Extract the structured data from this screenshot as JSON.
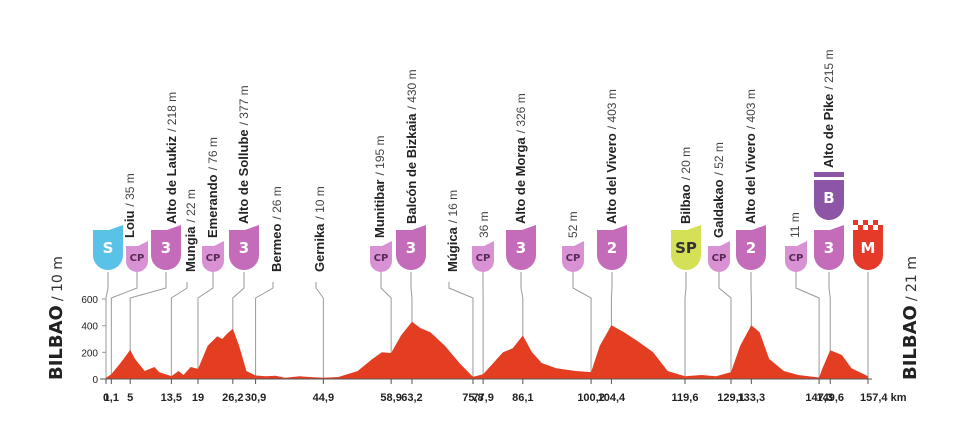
{
  "chart_data": {
    "type": "area",
    "color": "#e33d22",
    "x": [
      0,
      1.1,
      3,
      5,
      6,
      8,
      10,
      11,
      13.5,
      15,
      16,
      17.5,
      19,
      21,
      23,
      24,
      25,
      26.2,
      27.5,
      29,
      30.9,
      33,
      35,
      37,
      40,
      42,
      44.9,
      48,
      52,
      55,
      57,
      58.9,
      61,
      63.2,
      65,
      67,
      70,
      73,
      75.8,
      77.9,
      80,
      82,
      84,
      86.1,
      88,
      90,
      93,
      97,
      100.2,
      102,
      104.4,
      107,
      110,
      113,
      116,
      119.6,
      123,
      126,
      129.1,
      131,
      133.3,
      135,
      137,
      140,
      143,
      147.3,
      148,
      149.6,
      152,
      154,
      157.4
    ],
    "values": [
      10,
      35,
      120,
      218,
      150,
      60,
      90,
      50,
      22,
      60,
      30,
      90,
      76,
      250,
      320,
      300,
      340,
      377,
      250,
      60,
      26,
      20,
      25,
      10,
      20,
      15,
      10,
      15,
      60,
      150,
      200,
      195,
      330,
      430,
      380,
      350,
      250,
      120,
      16,
      36,
      120,
      200,
      230,
      326,
      200,
      120,
      80,
      60,
      52,
      250,
      403,
      350,
      280,
      200,
      60,
      20,
      30,
      20,
      52,
      250,
      403,
      350,
      150,
      60,
      30,
      11,
      80,
      215,
      180,
      80,
      21
    ],
    "xlim": [
      0,
      157.4
    ],
    "ylim": [
      0,
      600
    ],
    "yticks": [
      0,
      200,
      400,
      600
    ],
    "xticks": [
      0,
      {
        "value": 1.1,
        "label": "1,1"
      },
      5,
      {
        "value": 13.5,
        "label": "13,5"
      },
      19,
      {
        "value": 26.2,
        "label": "26,2"
      },
      {
        "value": 30.9,
        "label": "30,9"
      },
      {
        "value": 44.9,
        "label": "44,9"
      },
      {
        "value": 58.9,
        "label": "58,9"
      },
      {
        "value": 63.2,
        "label": "63,2"
      },
      {
        "value": 75.8,
        "label": "75,8"
      },
      {
        "value": 77.9,
        "label": "77,9"
      },
      {
        "value": 86.1,
        "label": "86,1"
      },
      {
        "value": 100.2,
        "label": "100,2"
      },
      {
        "value": 104.4,
        "label": "104,4"
      },
      {
        "value": 119.6,
        "label": "119,6"
      },
      {
        "value": 129.1,
        "label": "129,1"
      },
      {
        "value": 133.3,
        "label": "133,3"
      },
      {
        "value": 147.3,
        "label": "147,3"
      },
      {
        "value": 149.6,
        "label": "149,6"
      },
      {
        "value": 157.4,
        "label": "157,4 km"
      }
    ],
    "start": {
      "name": "BILBAO",
      "altitude": "/ 10 m"
    },
    "finish": {
      "name": "BILBAO",
      "altitude": "/ 21 m"
    },
    "waypoints": [
      {
        "badge": "S"
      },
      {
        "name": "Loiu",
        "altitude": "/ 35 m",
        "badge": "CP"
      },
      {
        "name": "Alto de Laukiz",
        "altitude": "/ 218 m",
        "badge": "3"
      },
      {
        "name": "Mungia",
        "altitude": "/ 22 m"
      },
      {
        "name": "Emerando",
        "altitude": "/ 76 m",
        "badge": "CP"
      },
      {
        "name": "Alto de Sollube",
        "altitude": "/ 377 m",
        "badge": "3"
      },
      {
        "name": "Bermeo",
        "altitude": "/ 26 m"
      },
      {
        "name": "Gernika",
        "altitude": "/ 10 m"
      },
      {
        "name": "Munitibar",
        "altitude": "/ 195 m",
        "badge": "CP"
      },
      {
        "name": "Balcón de Bizkaia",
        "altitude": "/ 430 m",
        "badge": "3"
      },
      {
        "name": "Múgica",
        "altitude": "/ 16 m"
      },
      {
        "altitude": "36 m",
        "badge": "CP"
      },
      {
        "name": "Alto de Morga",
        "altitude": "/ 326 m",
        "badge": "3"
      },
      {
        "altitude": "52 m",
        "badge": "CP"
      },
      {
        "name": "Alto del Vivero",
        "altitude": "/ 403 m",
        "badge": "2"
      },
      {
        "name": "Bilbao",
        "altitude": "/ 20 m",
        "badge": "SP"
      },
      {
        "name": "Galdakao",
        "altitude": "/ 52 m",
        "badge": "CP"
      },
      {
        "name": "Alto del Vivero",
        "altitude": "/ 403 m",
        "badge": "2"
      },
      {
        "altitude": "11 m",
        "badge": "CP"
      },
      {
        "name": "Alto de Pike",
        "altitude": "/ 215 m",
        "badge": "3",
        "extra_badge": "B"
      },
      {
        "badge": "M"
      }
    ]
  }
}
